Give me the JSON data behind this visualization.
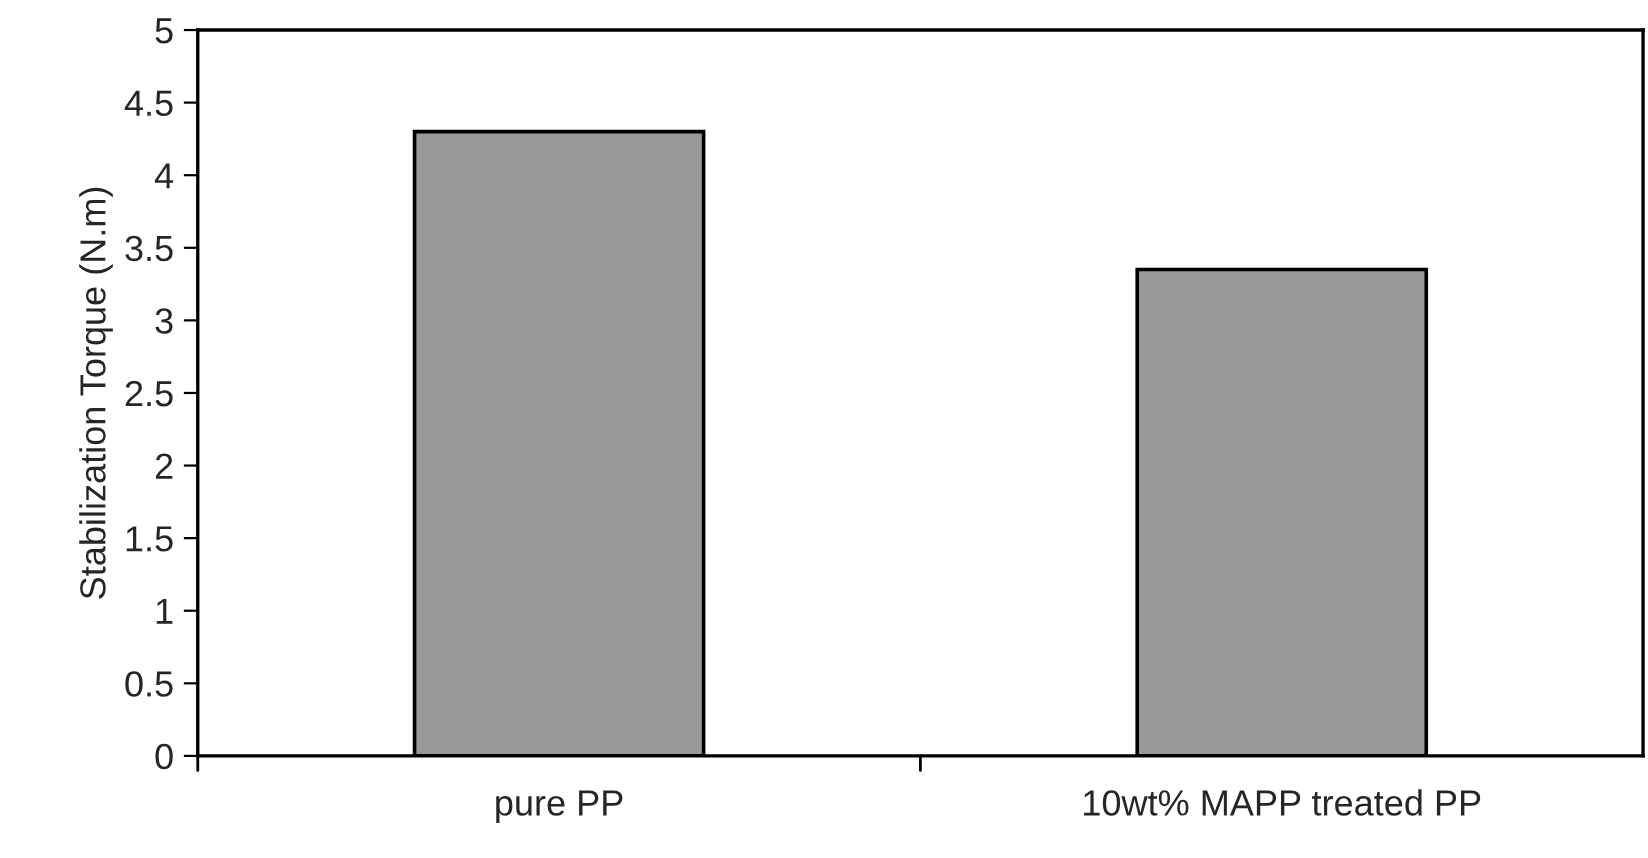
{
  "chart_data": {
    "type": "bar",
    "ylabel": "Stabilization Torque (N.m)",
    "categories": [
      "pure PP",
      "10wt% MAPP treated PP"
    ],
    "values": [
      4.3,
      3.35
    ],
    "color": "#999999",
    "ylim": [
      0,
      5
    ],
    "yticks": [
      0,
      0.5,
      1,
      1.5,
      2,
      2.5,
      3,
      3.5,
      4,
      4.5,
      5
    ],
    "grid": false
  }
}
